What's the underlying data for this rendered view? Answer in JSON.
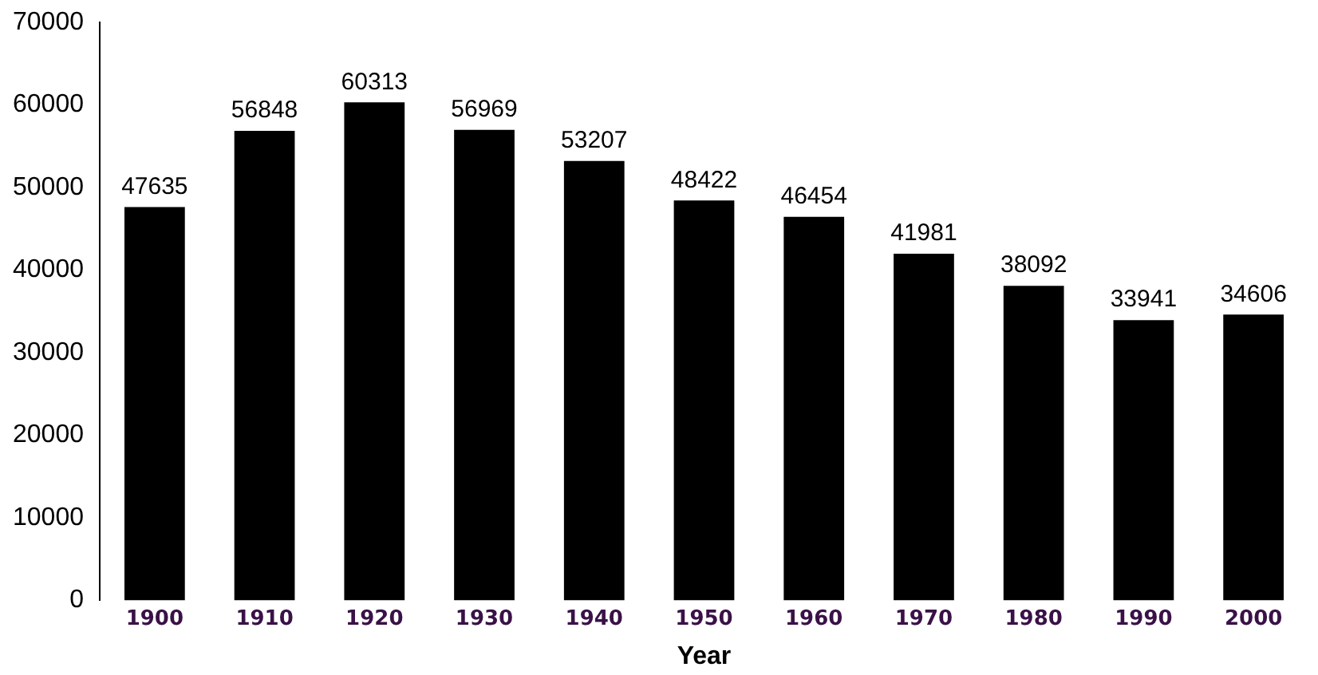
{
  "chart_data": {
    "type": "bar",
    "xlabel": "Year",
    "categories": [
      "1900",
      "1910",
      "1920",
      "1930",
      "1940",
      "1950",
      "1960",
      "1970",
      "1980",
      "1990",
      "2000"
    ],
    "values": [
      47635,
      56848,
      60313,
      56969,
      53207,
      48422,
      46454,
      41981,
      38092,
      33941,
      34606
    ],
    "color": "#000000",
    "ylim": [
      0,
      70000
    ],
    "yticks": [
      0,
      10000,
      20000,
      30000,
      40000,
      50000,
      60000,
      70000
    ],
    "grid": false,
    "legend": false,
    "data_labels": true
  }
}
